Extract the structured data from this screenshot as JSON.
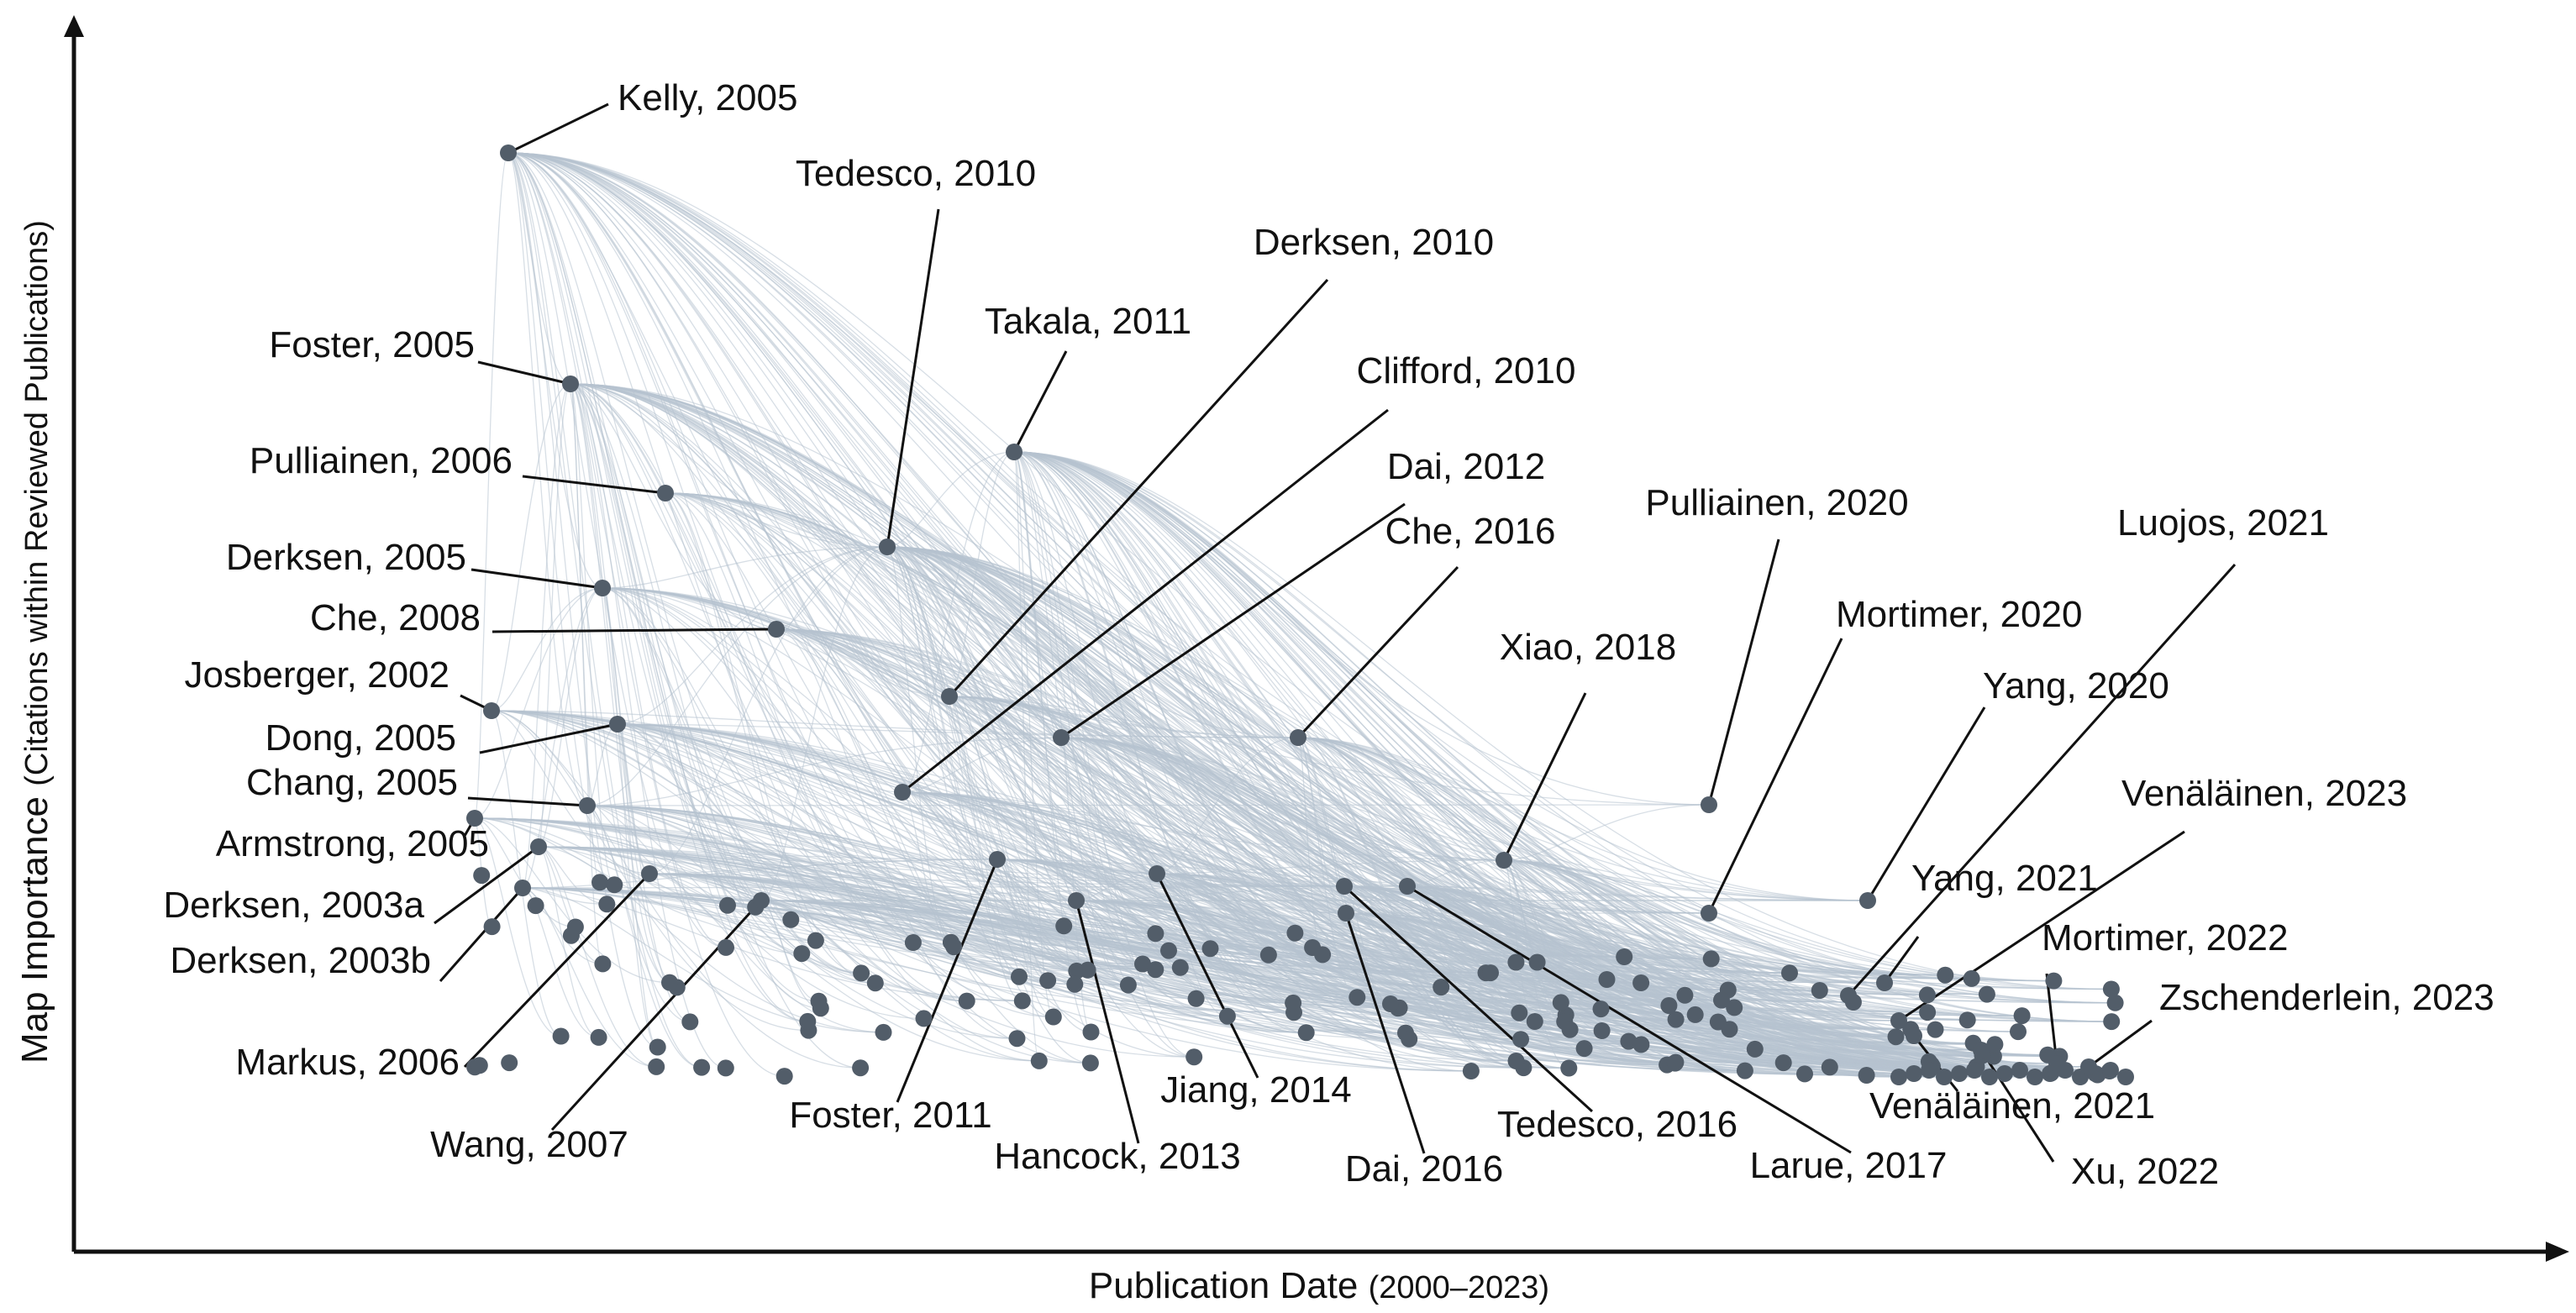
{
  "chart_data": {
    "type": "network-scatter",
    "title": "",
    "xlabel": "Publication Date",
    "xlabel_range": "(2000–2023)",
    "ylabel": "Map Importance",
    "ylabel_detail": "(Citations within Reviewed Publications)",
    "xlim": [
      2000,
      2023
    ],
    "ylim": [
      0,
      100
    ],
    "node_color": "#525d69",
    "edge_color": "#b7c3d0",
    "labeled_nodes": [
      {
        "label": "Kelly, 2005",
        "year": 2005,
        "importance": 100
      },
      {
        "label": "Foster, 2005",
        "year": 2005.6,
        "importance": 78
      },
      {
        "label": "Tedesco, 2010",
        "year": 2009.2,
        "importance": 63
      },
      {
        "label": "Takala, 2011",
        "year": 2010.4,
        "importance": 74
      },
      {
        "label": "Derksen, 2010",
        "year": 2009.9,
        "importance": 51
      },
      {
        "label": "Clifford, 2010",
        "year": 2009.4,
        "importance": 42
      },
      {
        "label": "Pulliainen, 2006",
        "year": 2006.5,
        "importance": 70
      },
      {
        "label": "Derksen, 2005",
        "year": 2005.9,
        "importance": 60
      },
      {
        "label": "Che, 2008",
        "year": 2007.6,
        "importance": 56
      },
      {
        "label": "Josberger, 2002",
        "year": 2004.8,
        "importance": 49
      },
      {
        "label": "Dong, 2005",
        "year": 2006.0,
        "importance": 48
      },
      {
        "label": "Chang, 2005",
        "year": 2005.7,
        "importance": 41
      },
      {
        "label": "Armstrong, 2005",
        "year": 2004.7,
        "importance": 39.5
      },
      {
        "label": "Derksen, 2003a",
        "year": 2005.3,
        "importance": 37
      },
      {
        "label": "Derksen, 2003b",
        "year": 2005.2,
        "importance": 33
      },
      {
        "label": "Markus, 2006",
        "year": 2006.4,
        "importance": 34
      },
      {
        "label": "Wang, 2007",
        "year": 2007.5,
        "importance": 32
      },
      {
        "label": "Foster, 2011",
        "year": 2010.3,
        "importance": 36
      },
      {
        "label": "Hancock, 2013",
        "year": 2011.0,
        "importance": 32
      },
      {
        "label": "Jiang, 2014",
        "year": 2011.7,
        "importance": 34
      },
      {
        "label": "Dai, 2012",
        "year": 2011.0,
        "importance": 48
      },
      {
        "label": "Che, 2016",
        "year": 2013.0,
        "importance": 48
      },
      {
        "label": "Dai, 2016",
        "year": 2013.3,
        "importance": 31
      },
      {
        "label": "Tedesco, 2016",
        "year": 2013.3,
        "importance": 33.5
      },
      {
        "label": "Larue, 2017",
        "year": 2013.8,
        "importance": 33.5
      },
      {
        "label": "Xiao, 2018",
        "year": 2014.8,
        "importance": 36
      },
      {
        "label": "Pulliainen, 2020",
        "year": 2016.2,
        "importance": 41
      },
      {
        "label": "Mortimer, 2020",
        "year": 2016.3,
        "importance": 31
      },
      {
        "label": "Yang, 2020",
        "year": 2016.2,
        "importance": 35
      },
      {
        "label": "Yang, 2021",
        "year": 2017.1,
        "importance": 24
      },
      {
        "label": "Luojos,  2021",
        "year": 2017.5,
        "importance": 33
      },
      {
        "label": "Venäläinen, 2021",
        "year": 2017.3,
        "importance": 20
      },
      {
        "label": "Venäläinen, 2023",
        "year": 2017.8,
        "importance": 18
      },
      {
        "label": "Xu, 2022",
        "year": 2017.9,
        "importance": 15
      },
      {
        "label": "Mortimer, 2022",
        "year": 2018.7,
        "importance": 15
      },
      {
        "label": "Zschenderlein, 2023",
        "year": 2019.7,
        "importance": 13
      }
    ]
  }
}
